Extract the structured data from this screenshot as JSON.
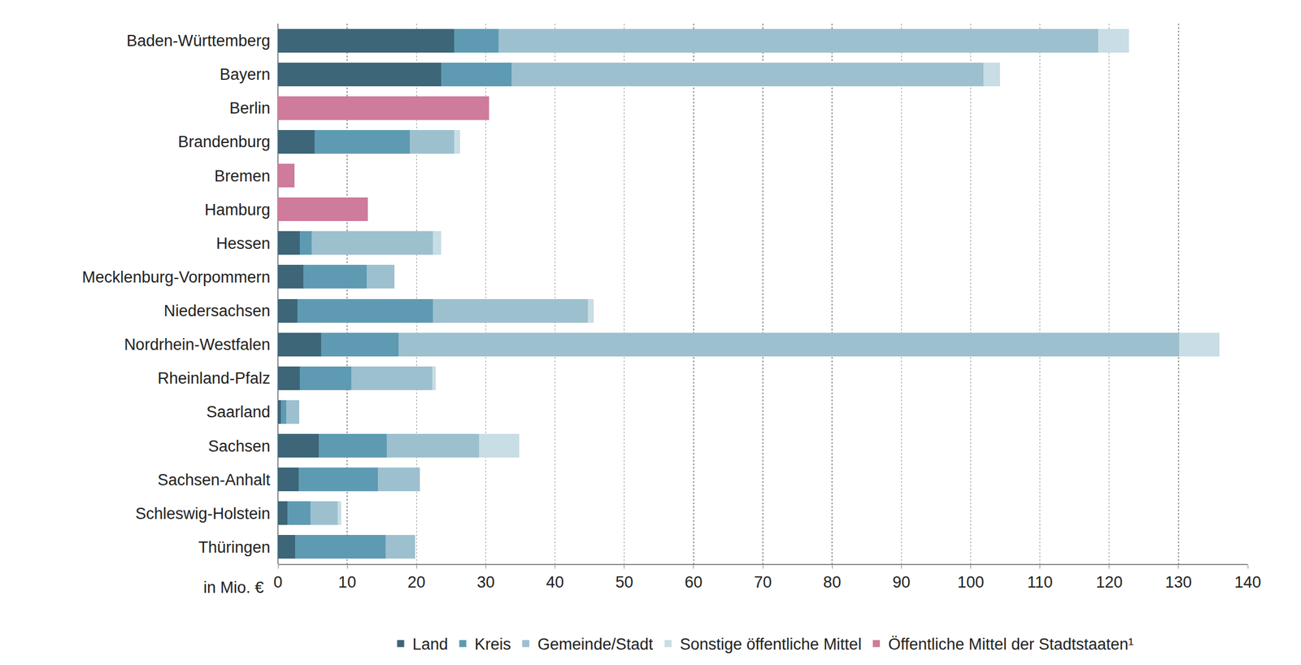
{
  "chart_data": {
    "type": "bar",
    "orientation": "horizontal",
    "stacked": true,
    "grid": true,
    "legend": "bottom",
    "x_label": "in Mio. €",
    "categories": [
      "Baden-Württemberg",
      "Bayern",
      "Berlin",
      "Brandenburg",
      "Bremen",
      "Hamburg",
      "Hessen",
      "Mecklenburg-Vorpommern",
      "Niedersachsen",
      "Nordrhein-Westfalen",
      "Rheinland-Pfalz",
      "Saarland",
      "Sachsen",
      "Sachsen-Anhalt",
      "Schleswig-Holstein",
      "Thüringen"
    ],
    "series": [
      {
        "name": "Land",
        "color": "#3d6678",
        "values": [
          25.4,
          23.6,
          null,
          5.3,
          null,
          null,
          3.2,
          3.7,
          2.8,
          6.2,
          3.2,
          0.4,
          5.9,
          3.0,
          1.4,
          2.5
        ]
      },
      {
        "name": "Kreis",
        "color": "#5e9bb2",
        "values": [
          6.4,
          10.1,
          null,
          13.7,
          null,
          null,
          1.7,
          9.1,
          19.6,
          11.2,
          7.4,
          0.8,
          9.8,
          11.4,
          3.3,
          13.0
        ]
      },
      {
        "name": "Gemeinde/Stadt",
        "color": "#9dc0cf",
        "values": [
          86.6,
          68.1,
          null,
          6.4,
          null,
          null,
          17.5,
          4.0,
          22.3,
          112.7,
          11.7,
          1.9,
          13.3,
          6.1,
          3.9,
          4.3
        ]
      },
      {
        "name": "Sonstige öffentliche Mittel",
        "color": "#c8dde5",
        "values": [
          4.4,
          2.4,
          null,
          0.9,
          null,
          null,
          1.2,
          0,
          0.9,
          5.8,
          0.5,
          0,
          5.8,
          0,
          0.5,
          0
        ]
      },
      {
        "name": "Öffentliche Mittel der Stadtstaaten¹",
        "color": "#cf7b9b",
        "values": [
          null,
          null,
          30.5,
          null,
          2.4,
          13.0,
          null,
          null,
          null,
          null,
          null,
          null,
          null,
          null,
          null,
          null
        ]
      }
    ],
    "xlim": [
      0,
      140
    ],
    "xticks": [
      0,
      10,
      20,
      30,
      40,
      50,
      60,
      70,
      80,
      90,
      100,
      110,
      120,
      130,
      140
    ]
  }
}
